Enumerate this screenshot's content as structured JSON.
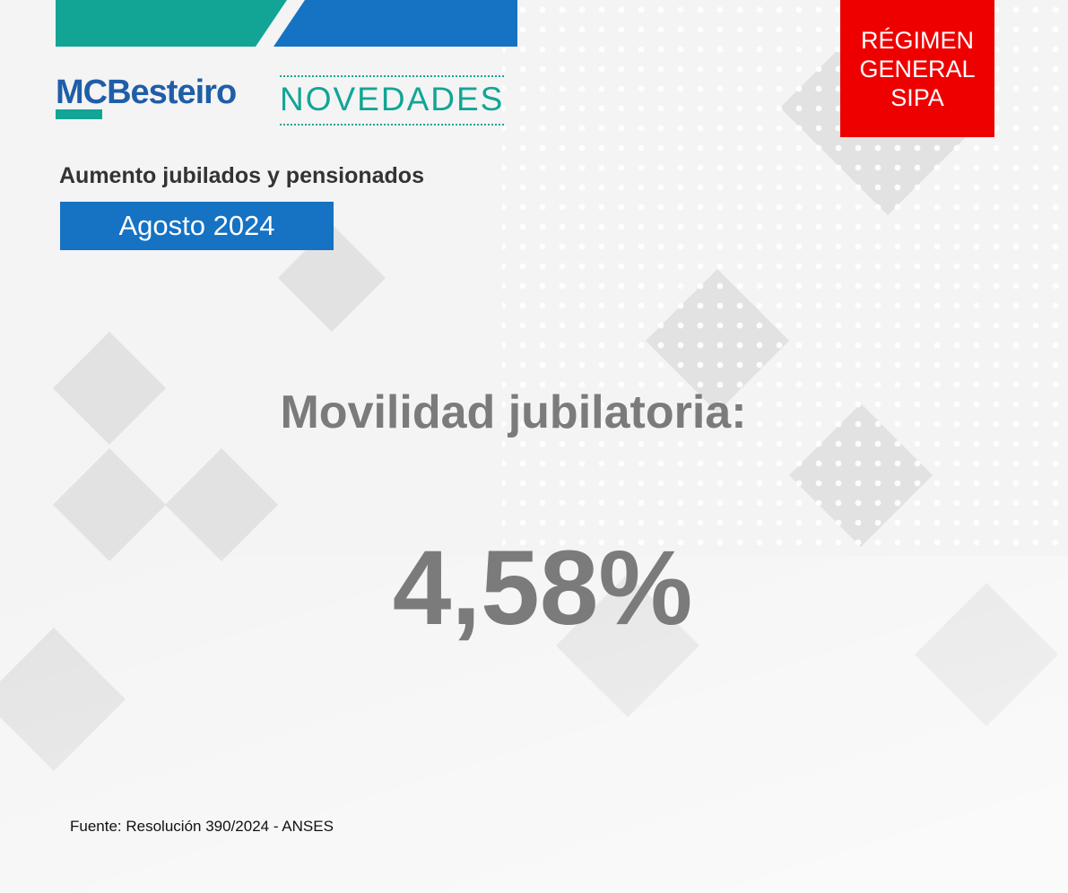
{
  "header": {
    "logo": "MCBesteiro",
    "section": "NOVEDADES",
    "badge": [
      "RÉGIMEN",
      "GENERAL",
      "SIPA"
    ]
  },
  "subtitle": "Aumento jubilados y pensionados",
  "period": "Agosto 2024",
  "headline": "Movilidad jubilatoria:",
  "value": "4,58%",
  "source": "Fuente: Resolución 390/2024 - ANSES"
}
